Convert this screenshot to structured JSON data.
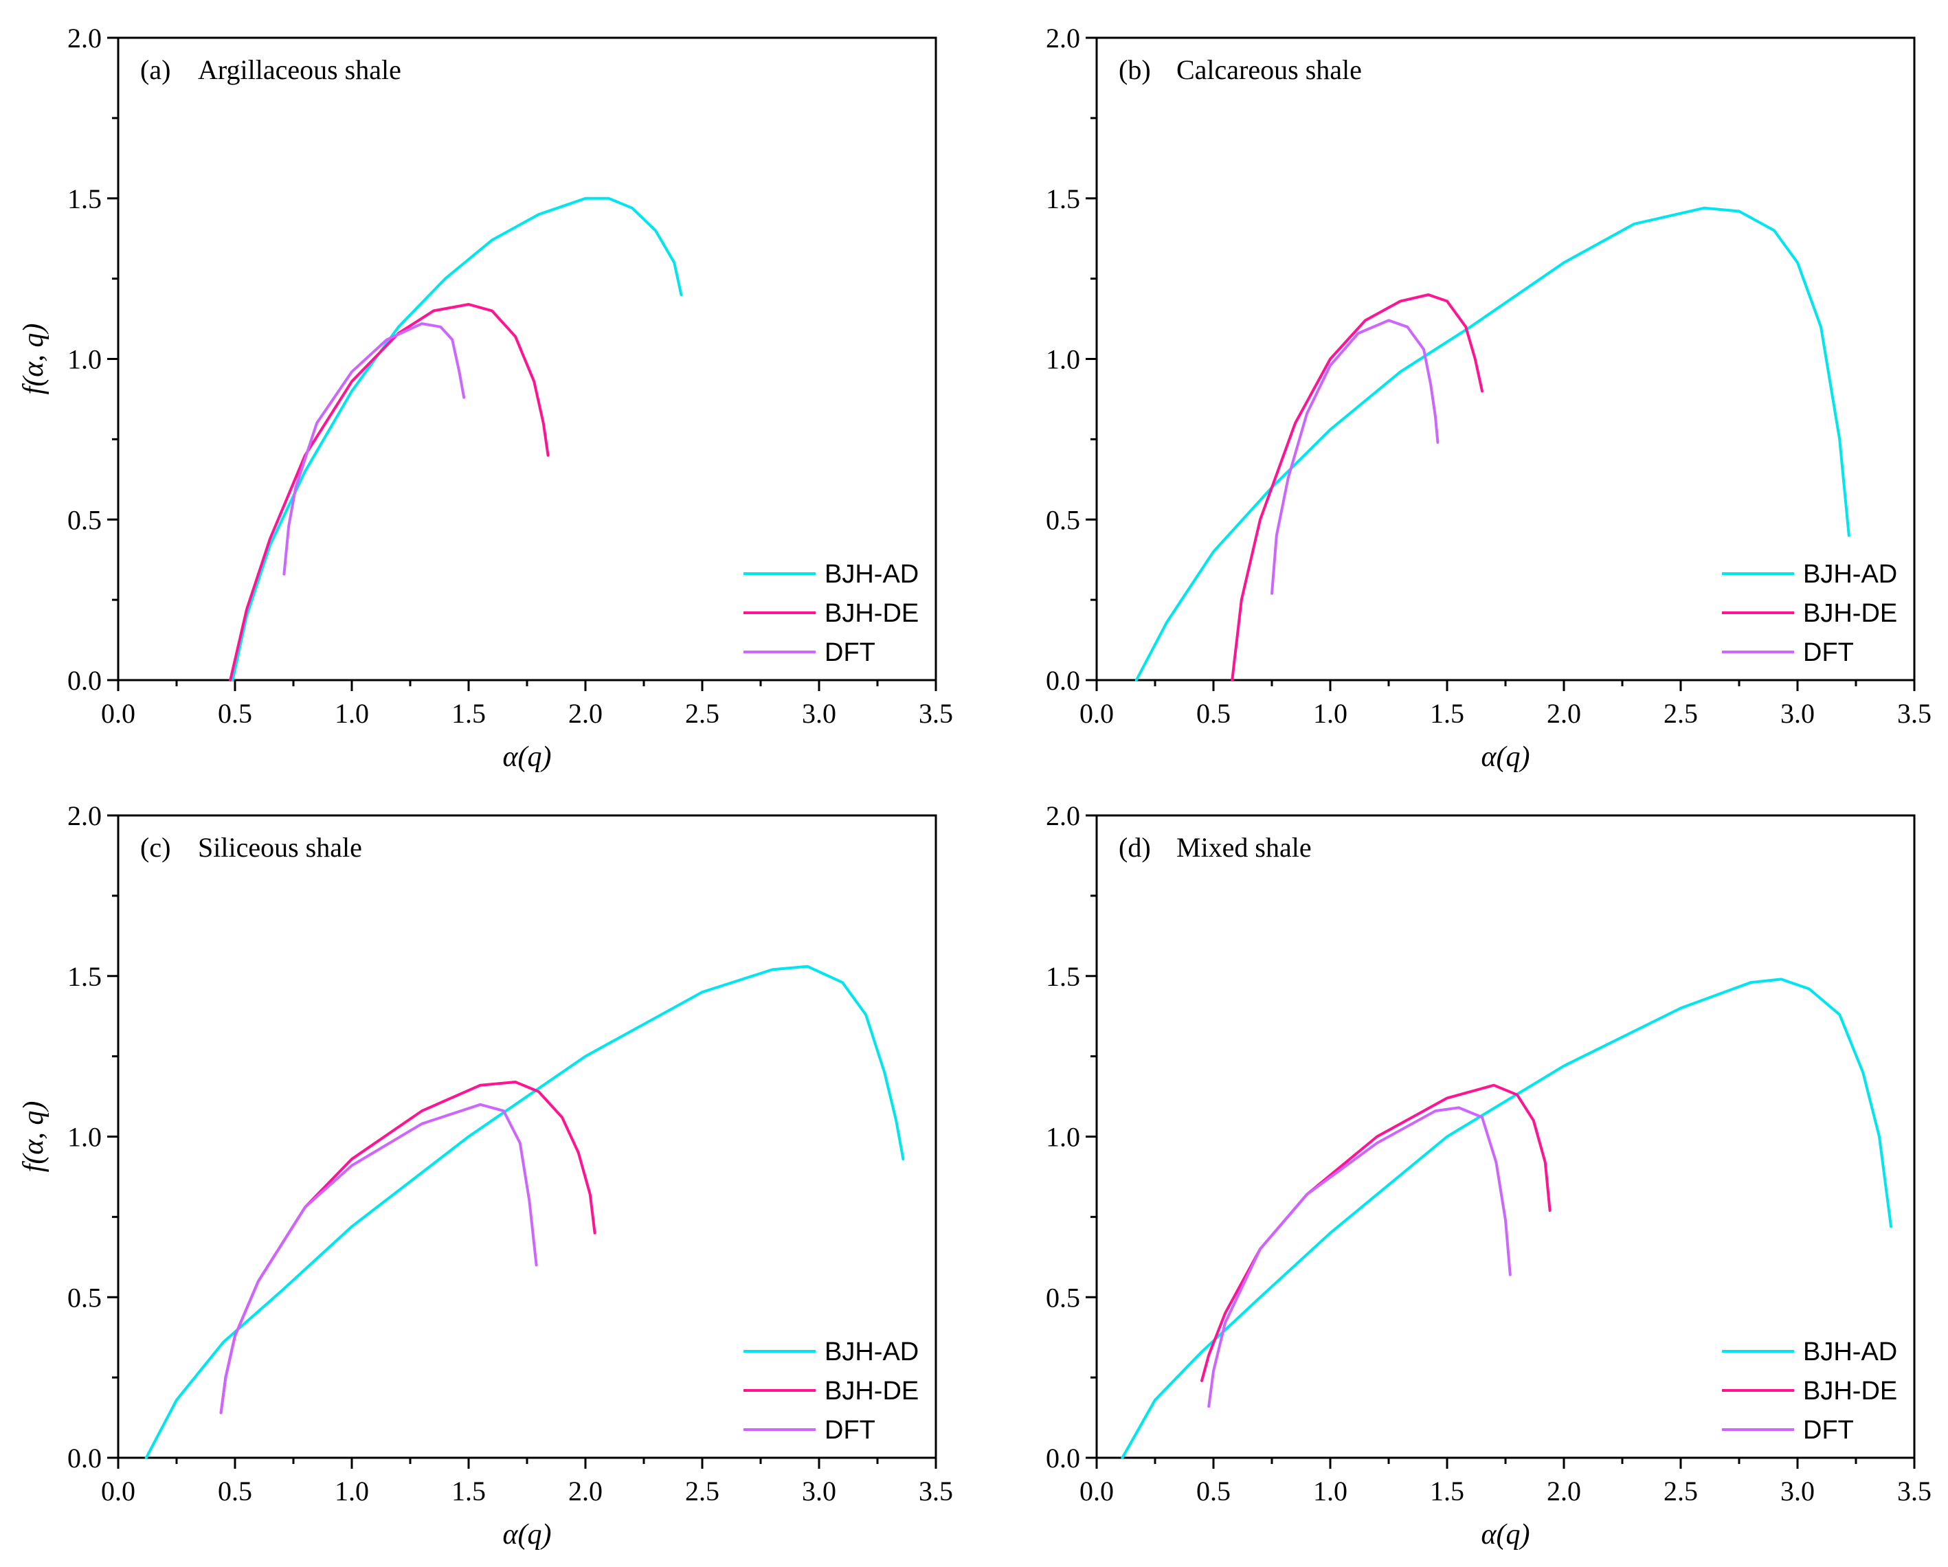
{
  "chart_data": [
    {
      "type": "line",
      "panel": "(a)",
      "title": "Argillaceous shale",
      "xlabel": "α(q)",
      "ylabel": "f(α, q)",
      "xlim": [
        0,
        3.5
      ],
      "ylim": [
        0,
        2.0
      ],
      "xticks": [
        "0.0",
        "0.5",
        "1.0",
        "1.5",
        "2.0",
        "2.5",
        "3.0",
        "3.5"
      ],
      "yticks": [
        "0.0",
        "0.5",
        "1.0",
        "1.5",
        "2.0"
      ],
      "legend_position": "bottom-right",
      "series": [
        {
          "name": "BJH-AD",
          "color": "#00e5ee",
          "points": [
            [
              0.49,
              0.0
            ],
            [
              0.55,
              0.2
            ],
            [
              0.65,
              0.42
            ],
            [
              0.8,
              0.65
            ],
            [
              1.0,
              0.9
            ],
            [
              1.2,
              1.1
            ],
            [
              1.4,
              1.25
            ],
            [
              1.6,
              1.37
            ],
            [
              1.8,
              1.45
            ],
            [
              2.0,
              1.5
            ],
            [
              2.1,
              1.5
            ],
            [
              2.2,
              1.47
            ],
            [
              2.3,
              1.4
            ],
            [
              2.38,
              1.3
            ],
            [
              2.41,
              1.2
            ]
          ]
        },
        {
          "name": "BJH-DE",
          "color": "#ff1493",
          "points": [
            [
              0.48,
              0.0
            ],
            [
              0.55,
              0.22
            ],
            [
              0.65,
              0.44
            ],
            [
              0.8,
              0.7
            ],
            [
              1.0,
              0.93
            ],
            [
              1.2,
              1.08
            ],
            [
              1.35,
              1.15
            ],
            [
              1.5,
              1.17
            ],
            [
              1.6,
              1.15
            ],
            [
              1.7,
              1.07
            ],
            [
              1.78,
              0.93
            ],
            [
              1.82,
              0.8
            ],
            [
              1.84,
              0.7
            ]
          ]
        },
        {
          "name": "DFT",
          "color": "#cc66ff",
          "points": [
            [
              0.71,
              0.33
            ],
            [
              0.73,
              0.48
            ],
            [
              0.76,
              0.6
            ],
            [
              0.85,
              0.8
            ],
            [
              1.0,
              0.96
            ],
            [
              1.15,
              1.06
            ],
            [
              1.3,
              1.11
            ],
            [
              1.38,
              1.1
            ],
            [
              1.43,
              1.06
            ],
            [
              1.46,
              0.96
            ],
            [
              1.48,
              0.88
            ]
          ]
        }
      ]
    },
    {
      "type": "line",
      "panel": "(b)",
      "title": "Calcareous shale",
      "xlabel": "α(q)",
      "ylabel": "",
      "xlim": [
        0,
        3.5
      ],
      "ylim": [
        0,
        2.0
      ],
      "xticks": [
        "0.0",
        "0.5",
        "1.0",
        "1.5",
        "2.0",
        "2.5",
        "3.0",
        "3.5"
      ],
      "yticks": [
        "0.0",
        "0.5",
        "1.0",
        "1.5",
        "2.0"
      ],
      "legend_position": "bottom-right",
      "series": [
        {
          "name": "BJH-AD",
          "color": "#00e5ee",
          "points": [
            [
              0.17,
              0.0
            ],
            [
              0.3,
              0.18
            ],
            [
              0.5,
              0.4
            ],
            [
              0.75,
              0.6
            ],
            [
              1.0,
              0.78
            ],
            [
              1.3,
              0.96
            ],
            [
              1.6,
              1.1
            ],
            [
              2.0,
              1.3
            ],
            [
              2.3,
              1.42
            ],
            [
              2.6,
              1.47
            ],
            [
              2.75,
              1.46
            ],
            [
              2.9,
              1.4
            ],
            [
              3.0,
              1.3
            ],
            [
              3.1,
              1.1
            ],
            [
              3.18,
              0.75
            ],
            [
              3.22,
              0.45
            ]
          ]
        },
        {
          "name": "BJH-DE",
          "color": "#ff1493",
          "points": [
            [
              0.58,
              0.0
            ],
            [
              0.62,
              0.25
            ],
            [
              0.7,
              0.5
            ],
            [
              0.85,
              0.8
            ],
            [
              1.0,
              1.0
            ],
            [
              1.15,
              1.12
            ],
            [
              1.3,
              1.18
            ],
            [
              1.42,
              1.2
            ],
            [
              1.5,
              1.18
            ],
            [
              1.58,
              1.1
            ],
            [
              1.62,
              1.0
            ],
            [
              1.65,
              0.9
            ]
          ]
        },
        {
          "name": "DFT",
          "color": "#cc66ff",
          "points": [
            [
              0.75,
              0.27
            ],
            [
              0.77,
              0.45
            ],
            [
              0.82,
              0.63
            ],
            [
              0.9,
              0.83
            ],
            [
              1.0,
              0.98
            ],
            [
              1.12,
              1.08
            ],
            [
              1.25,
              1.12
            ],
            [
              1.33,
              1.1
            ],
            [
              1.4,
              1.03
            ],
            [
              1.43,
              0.92
            ],
            [
              1.45,
              0.82
            ],
            [
              1.46,
              0.74
            ]
          ]
        }
      ]
    },
    {
      "type": "line",
      "panel": "(c)",
      "title": "Siliceous shale",
      "xlabel": "α(q)",
      "ylabel": "f(α, q)",
      "xlim": [
        0,
        3.5
      ],
      "ylim": [
        0,
        2.0
      ],
      "xticks": [
        "0.0",
        "0.5",
        "1.0",
        "1.5",
        "2.0",
        "2.5",
        "3.0",
        "3.5"
      ],
      "yticks": [
        "0.0",
        "0.5",
        "1.0",
        "1.5",
        "2.0"
      ],
      "legend_position": "bottom-right",
      "series": [
        {
          "name": "BJH-AD",
          "color": "#00e5ee",
          "points": [
            [
              0.12,
              0.0
            ],
            [
              0.25,
              0.18
            ],
            [
              0.45,
              0.36
            ],
            [
              0.7,
              0.52
            ],
            [
              1.0,
              0.72
            ],
            [
              1.5,
              1.0
            ],
            [
              2.0,
              1.25
            ],
            [
              2.5,
              1.45
            ],
            [
              2.8,
              1.52
            ],
            [
              2.95,
              1.53
            ],
            [
              3.1,
              1.48
            ],
            [
              3.2,
              1.38
            ],
            [
              3.28,
              1.2
            ],
            [
              3.33,
              1.05
            ],
            [
              3.36,
              0.93
            ]
          ]
        },
        {
          "name": "BJH-DE",
          "color": "#ff1493",
          "points": [
            [
              0.44,
              0.14
            ],
            [
              0.46,
              0.25
            ],
            [
              0.5,
              0.38
            ],
            [
              0.6,
              0.55
            ],
            [
              0.8,
              0.78
            ],
            [
              1.0,
              0.93
            ],
            [
              1.3,
              1.08
            ],
            [
              1.55,
              1.16
            ],
            [
              1.7,
              1.17
            ],
            [
              1.8,
              1.14
            ],
            [
              1.9,
              1.06
            ],
            [
              1.97,
              0.95
            ],
            [
              2.02,
              0.82
            ],
            [
              2.04,
              0.7
            ]
          ]
        },
        {
          "name": "DFT",
          "color": "#cc66ff",
          "points": [
            [
              0.44,
              0.14
            ],
            [
              0.46,
              0.25
            ],
            [
              0.5,
              0.38
            ],
            [
              0.6,
              0.55
            ],
            [
              0.8,
              0.78
            ],
            [
              1.0,
              0.91
            ],
            [
              1.3,
              1.04
            ],
            [
              1.55,
              1.1
            ],
            [
              1.65,
              1.08
            ],
            [
              1.72,
              0.98
            ],
            [
              1.76,
              0.8
            ],
            [
              1.79,
              0.6
            ]
          ]
        }
      ]
    },
    {
      "type": "line",
      "panel": "(d)",
      "title": "Mixed shale",
      "xlabel": "α(q)",
      "ylabel": "",
      "xlim": [
        0,
        3.5
      ],
      "ylim": [
        0,
        2.0
      ],
      "xticks": [
        "0.0",
        "0.5",
        "1.0",
        "1.5",
        "2.0",
        "2.5",
        "3.0",
        "3.5"
      ],
      "yticks": [
        "0.0",
        "0.5",
        "1.0",
        "1.5",
        "2.0"
      ],
      "legend_position": "bottom-right",
      "series": [
        {
          "name": "BJH-AD",
          "color": "#00e5ee",
          "points": [
            [
              0.11,
              0.0
            ],
            [
              0.25,
              0.18
            ],
            [
              0.45,
              0.33
            ],
            [
              0.7,
              0.5
            ],
            [
              1.0,
              0.7
            ],
            [
              1.5,
              1.0
            ],
            [
              2.0,
              1.22
            ],
            [
              2.5,
              1.4
            ],
            [
              2.8,
              1.48
            ],
            [
              2.93,
              1.49
            ],
            [
              3.05,
              1.46
            ],
            [
              3.18,
              1.38
            ],
            [
              3.28,
              1.2
            ],
            [
              3.35,
              1.0
            ],
            [
              3.4,
              0.72
            ]
          ]
        },
        {
          "name": "BJH-DE",
          "color": "#ff1493",
          "points": [
            [
              0.45,
              0.24
            ],
            [
              0.48,
              0.32
            ],
            [
              0.55,
              0.45
            ],
            [
              0.7,
              0.65
            ],
            [
              0.9,
              0.82
            ],
            [
              1.2,
              1.0
            ],
            [
              1.5,
              1.12
            ],
            [
              1.7,
              1.16
            ],
            [
              1.8,
              1.13
            ],
            [
              1.87,
              1.05
            ],
            [
              1.92,
              0.92
            ],
            [
              1.94,
              0.77
            ]
          ]
        },
        {
          "name": "DFT",
          "color": "#cc66ff",
          "points": [
            [
              0.48,
              0.16
            ],
            [
              0.5,
              0.27
            ],
            [
              0.55,
              0.42
            ],
            [
              0.7,
              0.65
            ],
            [
              0.9,
              0.82
            ],
            [
              1.2,
              0.98
            ],
            [
              1.45,
              1.08
            ],
            [
              1.55,
              1.09
            ],
            [
              1.65,
              1.06
            ],
            [
              1.71,
              0.92
            ],
            [
              1.75,
              0.74
            ],
            [
              1.77,
              0.57
            ]
          ]
        }
      ]
    }
  ]
}
